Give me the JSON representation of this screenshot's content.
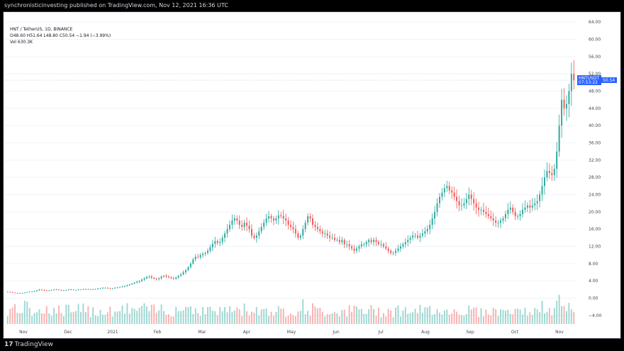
{
  "header": {
    "publisher": "synchronisticinvesting published on TradingView.com, Nov 12, 2021 16:36 UTC"
  },
  "legend": {
    "symbol": "HNT / TetherUS, 1D, BINANCE",
    "ohlc": "O48.60 H51.64 L48.80 C50.54 −1.94 (−3.99%)",
    "volume": "Vol  630.3K"
  },
  "price_badge": {
    "symbol": "HNTUSDT",
    "price": "50.54",
    "countdown": "07:53:22"
  },
  "footer": {
    "logo": "17",
    "brand": "TradingView"
  },
  "colors": {
    "up": "#26a69a",
    "down": "#ef5350",
    "badge": "#2962ff",
    "grid": "#f0f3fa"
  },
  "chart_data": {
    "type": "candlestick",
    "title": "HNT / TetherUS, 1D, BINANCE",
    "ylim": [
      -6,
      66
    ],
    "y_ticks": [
      "64.00",
      "60.00",
      "56.00",
      "52.00",
      "48.00",
      "44.00",
      "40.00",
      "36.00",
      "32.00",
      "28.00",
      "24.00",
      "20.00",
      "16.00",
      "12.00",
      "8.00",
      "4.00",
      "0.00",
      "−4.00"
    ],
    "x_ticks": [
      "Nov",
      "Dec",
      "2021",
      "Feb",
      "Mar",
      "Apr",
      "May",
      "Jun",
      "Jul",
      "Aug",
      "Sep",
      "Oct",
      "Nov"
    ],
    "last_price": 50.54,
    "approx_daily_close": [
      1.5,
      1.4,
      1.3,
      1.2,
      1.2,
      1.1,
      1.2,
      1.3,
      1.4,
      1.5,
      1.5,
      1.6,
      1.8,
      2.0,
      1.9,
      1.8,
      1.7,
      1.8,
      1.9,
      2.0,
      2.0,
      1.9,
      1.8,
      1.8,
      1.9,
      2.0,
      2.0,
      1.9,
      1.9,
      2.0,
      2.0,
      2.1,
      2.1,
      2.0,
      2.0,
      2.1,
      2.1,
      2.2,
      2.3,
      2.4,
      2.4,
      2.3,
      2.2,
      2.3,
      2.4,
      2.5,
      2.6,
      2.7,
      2.8,
      3.0,
      3.2,
      3.4,
      3.6,
      3.8,
      4.0,
      4.3,
      4.6,
      4.9,
      5.0,
      4.7,
      4.5,
      4.4,
      4.6,
      5.0,
      5.2,
      5.0,
      4.8,
      4.6,
      4.5,
      4.8,
      5.2,
      5.5,
      6.0,
      6.5,
      7.2,
      8.0,
      9.0,
      9.6,
      9.5,
      10.0,
      10.3,
      10.5,
      11.0,
      11.8,
      12.6,
      13.2,
      12.8,
      13.0,
      14.0,
      15.0,
      16.0,
      17.0,
      18.0,
      18.5,
      18.0,
      17.0,
      16.5,
      17.5,
      16.8,
      16.0,
      14.5,
      14.0,
      14.5,
      15.5,
      16.5,
      17.5,
      18.5,
      19.0,
      18.5,
      18.0,
      18.5,
      19.2,
      19.0,
      18.5,
      18.0,
      17.0,
      16.5,
      16.0,
      15.0,
      14.0,
      14.5,
      16.0,
      17.5,
      19.0,
      18.5,
      17.0,
      16.5,
      16.0,
      15.5,
      15.0,
      15.0,
      14.5,
      14.0,
      14.0,
      13.5,
      13.5,
      13.0,
      13.5,
      12.5,
      12.5,
      12.0,
      11.5,
      11.0,
      11.5,
      12.0,
      12.5,
      12.5,
      13.0,
      13.5,
      13.0,
      13.5,
      13.0,
      12.5,
      12.5,
      12.0,
      11.5,
      11.0,
      10.5,
      10.5,
      11.0,
      11.5,
      12.0,
      12.5,
      13.0,
      13.5,
      14.0,
      14.5,
      14.5,
      14.0,
      14.5,
      15.0,
      15.5,
      16.0,
      17.0,
      18.5,
      20.0,
      22.0,
      23.5,
      24.5,
      25.5,
      26.0,
      25.0,
      24.5,
      23.5,
      22.5,
      21.5,
      21.5,
      22.0,
      23.0,
      24.0,
      23.0,
      22.0,
      21.0,
      20.5,
      20.5,
      20.0,
      19.5,
      19.0,
      18.5,
      18.0,
      17.5,
      17.5,
      18.0,
      18.5,
      19.5,
      20.5,
      21.0,
      20.0,
      19.0,
      19.0,
      19.5,
      20.5,
      21.0,
      21.5,
      21.0,
      21.5,
      22.0,
      22.5,
      24.0,
      26.0,
      28.0,
      29.5,
      29.0,
      28.5,
      30.0,
      34.0,
      40.0,
      46.0,
      44.0,
      45.0,
      48.0,
      52.0,
      50.54
    ]
  }
}
